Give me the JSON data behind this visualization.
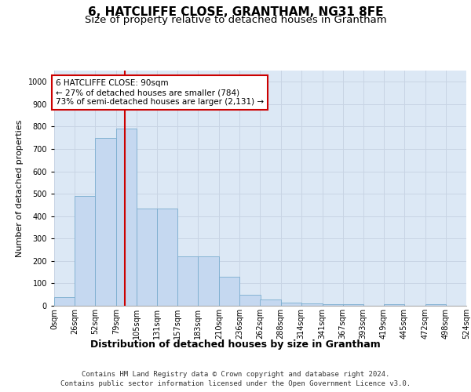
{
  "title": "6, HATCLIFFE CLOSE, GRANTHAM, NG31 8FE",
  "subtitle": "Size of property relative to detached houses in Grantham",
  "xlabel": "Distribution of detached houses by size in Grantham",
  "ylabel": "Number of detached properties",
  "footer_line1": "Contains HM Land Registry data © Crown copyright and database right 2024.",
  "footer_line2": "Contains public sector information licensed under the Open Government Licence v3.0.",
  "bins": [
    0,
    26,
    52,
    79,
    105,
    131,
    157,
    183,
    210,
    236,
    262,
    288,
    314,
    341,
    367,
    393,
    419,
    445,
    472,
    498,
    524
  ],
  "bin_labels": [
    "0sqm",
    "26sqm",
    "52sqm",
    "79sqm",
    "105sqm",
    "131sqm",
    "157sqm",
    "183sqm",
    "210sqm",
    "236sqm",
    "262sqm",
    "288sqm",
    "314sqm",
    "341sqm",
    "367sqm",
    "393sqm",
    "419sqm",
    "445sqm",
    "472sqm",
    "498sqm",
    "524sqm"
  ],
  "values": [
    40,
    490,
    750,
    790,
    435,
    435,
    220,
    220,
    130,
    50,
    28,
    15,
    10,
    8,
    8,
    0,
    8,
    0,
    8,
    0
  ],
  "bar_color": "#c5d8f0",
  "bar_edge_color": "#7aadcf",
  "property_size": 90,
  "vline_color": "#cc0000",
  "annotation_text": "6 HATCLIFFE CLOSE: 90sqm\n← 27% of detached houses are smaller (784)\n73% of semi-detached houses are larger (2,131) →",
  "annotation_box_color": "#cc0000",
  "annotation_box_fill": "white",
  "ylim": [
    0,
    1050
  ],
  "yticks": [
    0,
    100,
    200,
    300,
    400,
    500,
    600,
    700,
    800,
    900,
    1000
  ],
  "grid_color": "#c8d4e4",
  "bg_color": "#dce8f5",
  "title_fontsize": 11,
  "subtitle_fontsize": 9.5,
  "ylabel_fontsize": 8,
  "xlabel_fontsize": 9,
  "tick_fontsize": 7,
  "footer_fontsize": 6.5,
  "annotation_fontsize": 7.5
}
